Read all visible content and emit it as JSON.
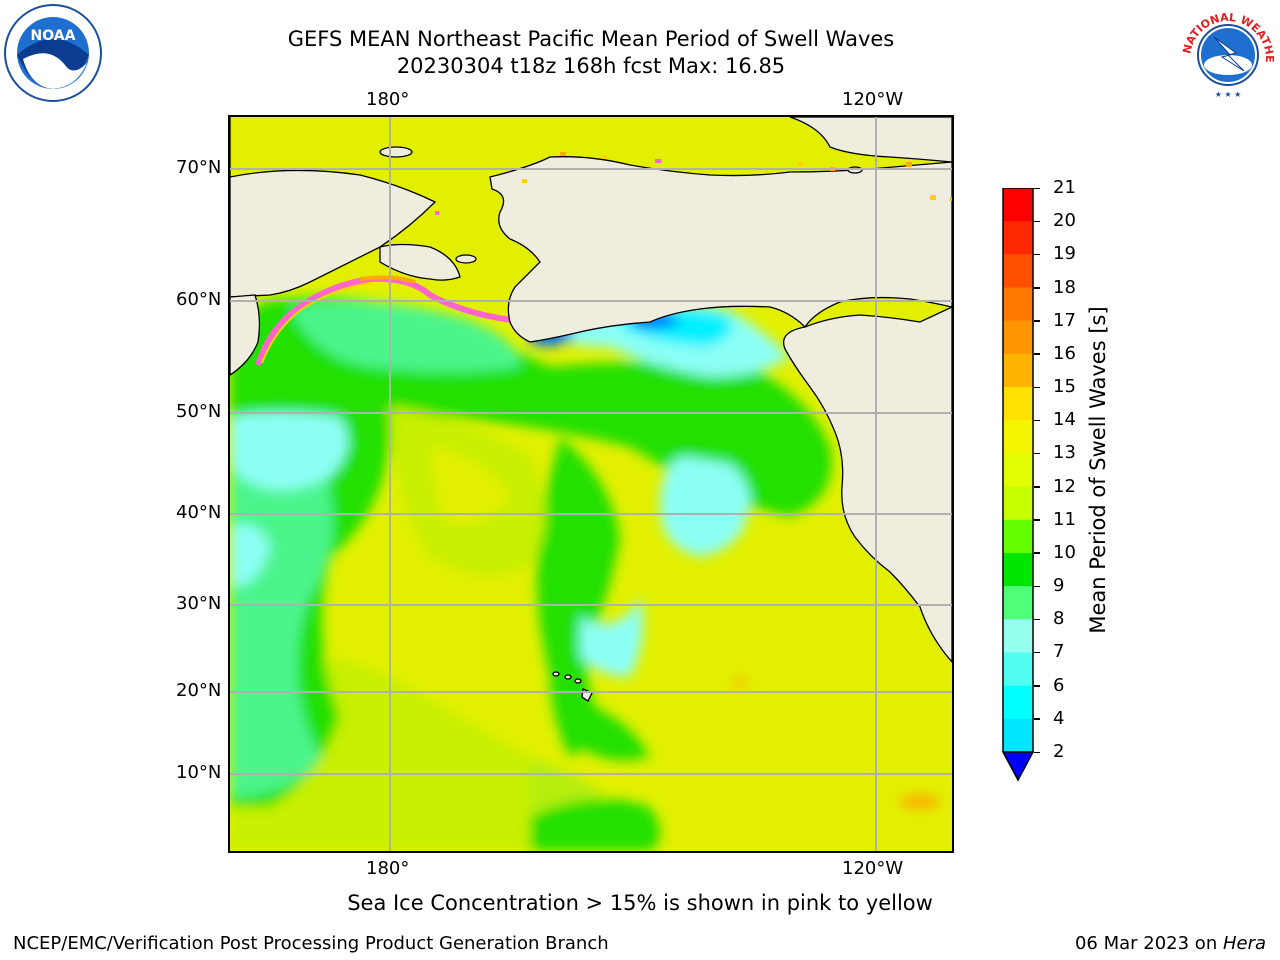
{
  "header": {
    "title_line1": "GEFS MEAN Northeast Pacific Mean Period of Swell Waves",
    "title_line2": "20230304 t18z 168h fcst   Max: 16.85"
  },
  "map": {
    "lon_labels_top": [
      "180°",
      "120°W"
    ],
    "lon_labels_bottom": [
      "180°",
      "120°W"
    ],
    "lat_labels": [
      "70°N",
      "60°N",
      "50°N",
      "40°N",
      "30°N",
      "20°N",
      "10°N"
    ],
    "land_color": "#efedde",
    "grid_color": "#b0b0b0",
    "ocean_colors": {
      "yellow": "#e2f000",
      "yellow_green": "#c8f000",
      "green": "#22e000",
      "light_green": "#4cf58c",
      "cyan": "#8cfff5",
      "bright_cyan": "#00f0ff",
      "blue": "#0070ff",
      "orange": "#ffaa00",
      "sea_ice_pink": "#ff66cc"
    }
  },
  "colorbar": {
    "label": "Mean Period of Swell Waves [s]",
    "ticks": [
      "21",
      "20",
      "19",
      "18",
      "17",
      "16",
      "15",
      "14",
      "13",
      "12",
      "11",
      "10",
      "9",
      "8",
      "7",
      "6",
      "4",
      "2"
    ],
    "colors_top_down": [
      "#ff0000",
      "#ff2800",
      "#ff5000",
      "#ff7800",
      "#ff9600",
      "#ffb400",
      "#ffe100",
      "#f5f500",
      "#e1ff00",
      "#c8ff00",
      "#64ff00",
      "#00e600",
      "#50ff78",
      "#96fff0",
      "#50fff0",
      "#00ffff",
      "#00e6ff",
      "#0078ff"
    ],
    "extend_color": "#0000ff"
  },
  "caption": "Sea Ice Concentration > 15% is shown in pink to yellow",
  "footer": {
    "left": "NCEP/EMC/Verification Post Processing Product Generation Branch",
    "right_date": "06 Mar 2023 on ",
    "right_host": "Hera"
  },
  "logos": {
    "noaa_text": "NOAA",
    "nws_text": "NATIONAL WEATHER SERVICE"
  }
}
